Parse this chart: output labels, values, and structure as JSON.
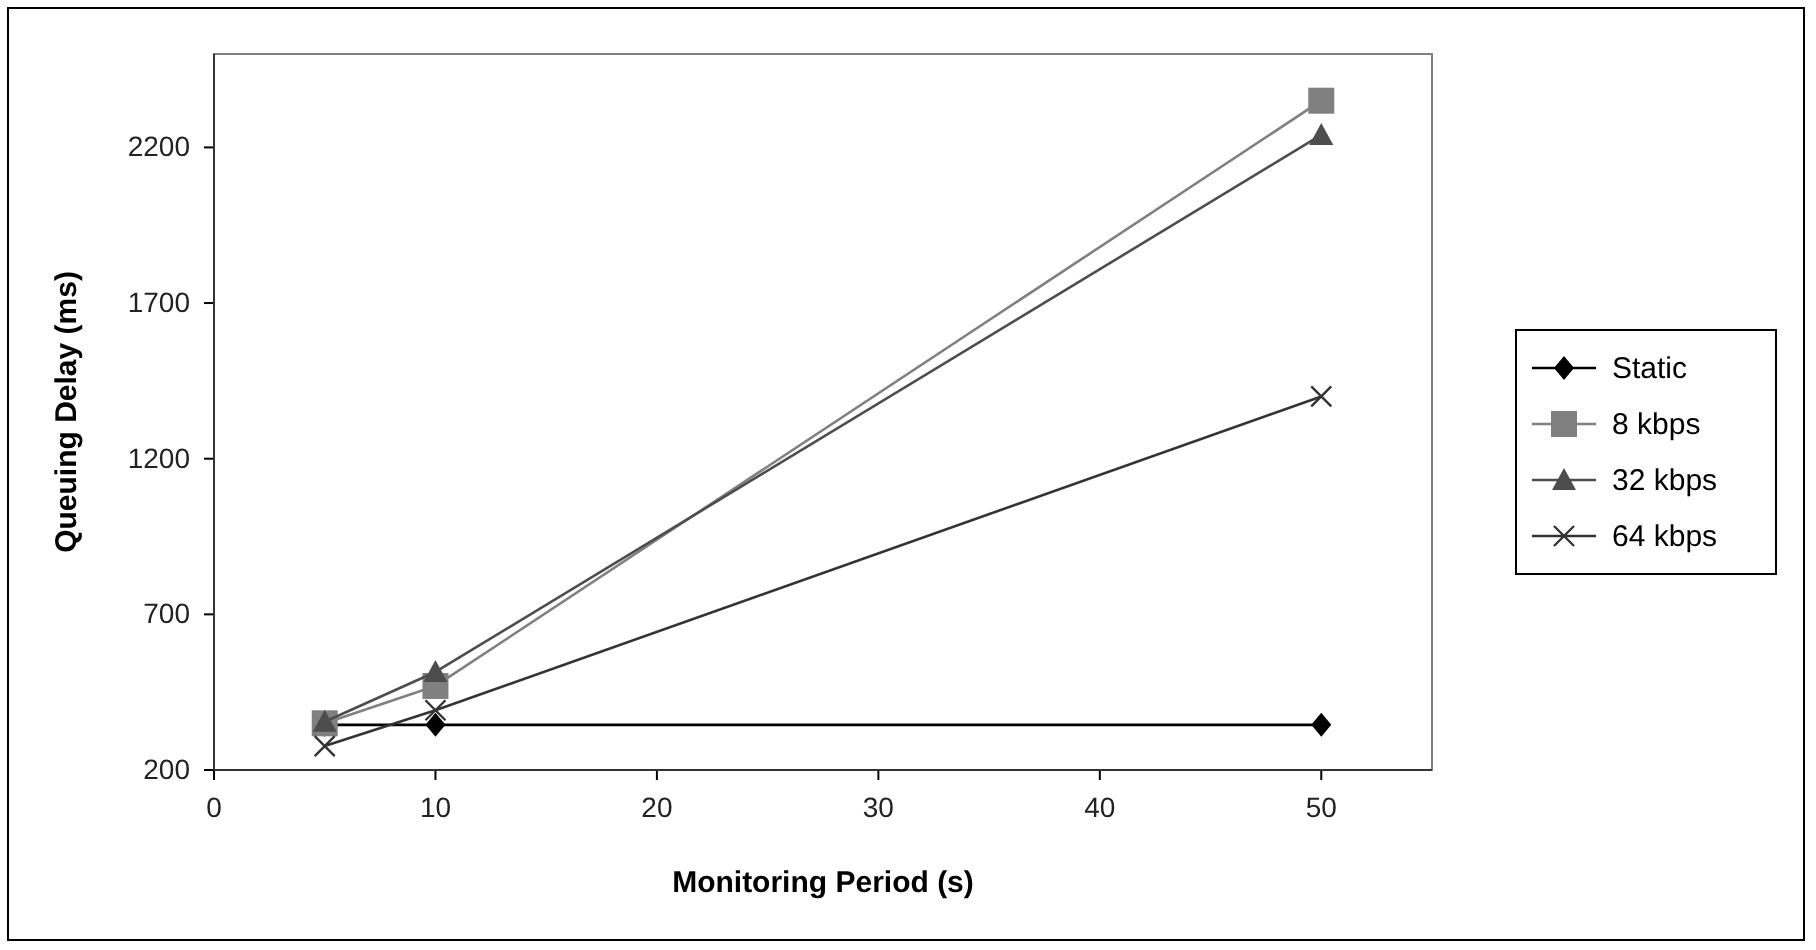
{
  "chart_data": {
    "type": "line",
    "xlabel": "Monitoring Period (s)",
    "ylabel": "Queuing Delay (ms)",
    "x": [
      5,
      10,
      50
    ],
    "series": [
      {
        "name": "Static",
        "color": "#000000",
        "marker": "diamond",
        "values": [
          345,
          345,
          345
        ]
      },
      {
        "name": "8 kbps",
        "color": "#808080",
        "marker": "square",
        "values": [
          350,
          470,
          2350
        ]
      },
      {
        "name": "32 kbps",
        "color": "#4d4d4d",
        "marker": "triangle",
        "values": [
          355,
          515,
          2240
        ]
      },
      {
        "name": "64 kbps",
        "color": "#333333",
        "marker": "cross",
        "values": [
          277,
          392,
          1400
        ]
      }
    ],
    "xlim": [
      0,
      55
    ],
    "xticks": [
      0,
      10,
      20,
      30,
      40,
      50
    ],
    "ylim": [
      200,
      2500
    ],
    "yticks": [
      200,
      700,
      1200,
      1700,
      2200
    ],
    "grid": false,
    "legend": "right"
  }
}
